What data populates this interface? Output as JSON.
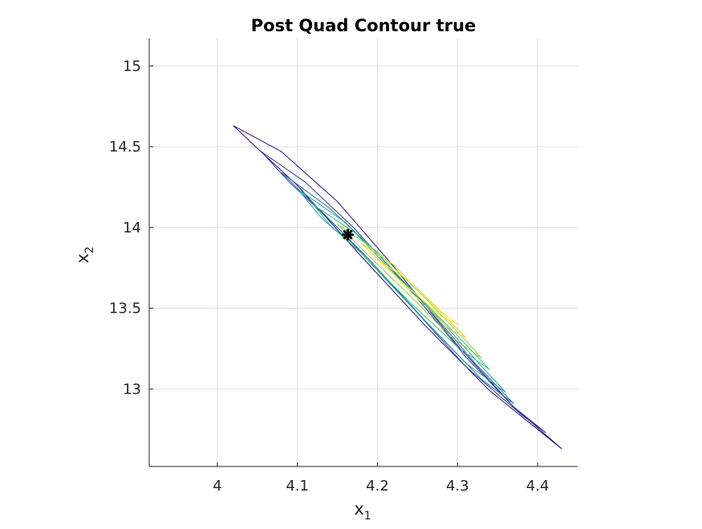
{
  "chart_data": {
    "type": "contour",
    "title": "Post Quad Contour true",
    "xlabel": "x",
    "xlabel_sub": "1",
    "ylabel": "x",
    "ylabel_sub": "2",
    "xlim": [
      3.915,
      4.45
    ],
    "ylim": [
      12.52,
      15.17
    ],
    "xticks": [
      4,
      4.1,
      4.2,
      4.3,
      4.4
    ],
    "xtick_labels": [
      "4",
      "4.1",
      "4.2",
      "4.3",
      "4.4"
    ],
    "yticks": [
      13,
      13.5,
      14,
      14.5,
      15
    ],
    "ytick_labels": [
      "13",
      "13.5",
      "14",
      "14.5",
      "15"
    ],
    "grid": true,
    "colormap": [
      "#3b0f70",
      "#2c3e8f",
      "#2a6fa8",
      "#21a0a4",
      "#3cbf85",
      "#8fd14f",
      "#e5d323",
      "#fde725"
    ],
    "marker": {
      "x": 4.163,
      "y": 13.955,
      "color": "#000000",
      "shape": "asterisk"
    },
    "contour_levels": [
      {
        "level": 1,
        "color": "#2a0f80",
        "points": [
          [
            4.02,
            14.63
          ],
          [
            4.08,
            14.47
          ],
          [
            4.15,
            14.16
          ],
          [
            4.22,
            13.76
          ],
          [
            4.3,
            13.27
          ],
          [
            4.37,
            12.89
          ],
          [
            4.43,
            12.63
          ],
          [
            4.42,
            12.67
          ],
          [
            4.34,
            12.99
          ],
          [
            4.26,
            13.39
          ],
          [
            4.18,
            13.82
          ],
          [
            4.1,
            14.26
          ],
          [
            4.05,
            14.49
          ],
          [
            4.02,
            14.63
          ]
        ]
      },
      {
        "level": 2,
        "color": "#2c3e8f",
        "points": [
          [
            4.055,
            14.47
          ],
          [
            4.11,
            14.28
          ],
          [
            4.17,
            14.0
          ],
          [
            4.24,
            13.62
          ],
          [
            4.31,
            13.2
          ],
          [
            4.37,
            12.89
          ],
          [
            4.41,
            12.73
          ],
          [
            4.38,
            12.84
          ],
          [
            4.31,
            13.14
          ],
          [
            4.23,
            13.58
          ],
          [
            4.15,
            14.0
          ],
          [
            4.09,
            14.28
          ],
          [
            4.055,
            14.47
          ]
        ]
      },
      {
        "level": 3,
        "color": "#2a6fa8",
        "points": [
          [
            4.08,
            14.34
          ],
          [
            4.14,
            14.12
          ],
          [
            4.2,
            13.84
          ],
          [
            4.26,
            13.52
          ],
          [
            4.32,
            13.17
          ],
          [
            4.37,
            12.91
          ],
          [
            4.33,
            13.06
          ],
          [
            4.26,
            13.42
          ],
          [
            4.19,
            13.8
          ],
          [
            4.13,
            14.1
          ],
          [
            4.08,
            14.34
          ]
        ]
      },
      {
        "level": 4,
        "color": "#21a0a4",
        "points": [
          [
            4.1,
            14.24
          ],
          [
            4.16,
            14.03
          ],
          [
            4.22,
            13.72
          ],
          [
            4.28,
            13.42
          ],
          [
            4.33,
            13.14
          ],
          [
            4.36,
            12.98
          ],
          [
            4.31,
            13.16
          ],
          [
            4.25,
            13.47
          ],
          [
            4.18,
            13.84
          ],
          [
            4.13,
            14.06
          ],
          [
            4.1,
            14.24
          ]
        ]
      },
      {
        "level": 5,
        "color": "#3cbf85",
        "points": [
          [
            4.12,
            14.14
          ],
          [
            4.18,
            13.94
          ],
          [
            4.24,
            13.63
          ],
          [
            4.3,
            13.33
          ],
          [
            4.34,
            13.12
          ],
          [
            4.3,
            13.26
          ],
          [
            4.24,
            13.54
          ],
          [
            4.18,
            13.84
          ],
          [
            4.14,
            14.02
          ],
          [
            4.12,
            14.14
          ]
        ]
      },
      {
        "level": 6,
        "color": "#8fd14f",
        "points": [
          [
            4.15,
            14.02
          ],
          [
            4.2,
            13.85
          ],
          [
            4.26,
            13.56
          ],
          [
            4.31,
            13.3
          ],
          [
            4.33,
            13.19
          ],
          [
            4.29,
            13.33
          ],
          [
            4.24,
            13.58
          ],
          [
            4.19,
            13.82
          ],
          [
            4.15,
            14.02
          ]
        ]
      },
      {
        "level": 7,
        "color": "#e5d323",
        "points": [
          [
            4.18,
            13.9
          ],
          [
            4.22,
            13.77
          ],
          [
            4.27,
            13.52
          ],
          [
            4.31,
            13.32
          ],
          [
            4.29,
            13.37
          ],
          [
            4.25,
            13.56
          ],
          [
            4.21,
            13.76
          ],
          [
            4.18,
            13.9
          ]
        ]
      },
      {
        "level": 8,
        "color": "#fde725",
        "points": [
          [
            4.2,
            13.8
          ],
          [
            4.24,
            13.67
          ],
          [
            4.28,
            13.48
          ],
          [
            4.3,
            13.4
          ],
          [
            4.28,
            13.45
          ],
          [
            4.24,
            13.62
          ],
          [
            4.2,
            13.8
          ]
        ]
      }
    ]
  }
}
